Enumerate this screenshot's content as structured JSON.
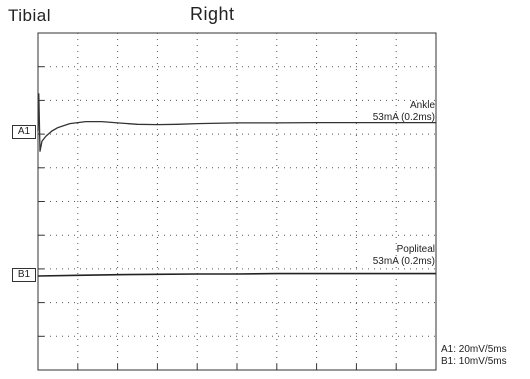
{
  "header": {
    "nerve": "Tibial",
    "side": "Right"
  },
  "channels": [
    {
      "tag": "A1",
      "site": "Ankle",
      "stim": "53mA (0.2ms)"
    },
    {
      "tag": "B1",
      "site": "Popliteal",
      "stim": "53mA (0.2ms)"
    }
  ],
  "scales": {
    "a1": "A1: 20mV/5ms",
    "b1": "B1: 10mV/5ms"
  },
  "chart_data": {
    "type": "line",
    "title": "",
    "xlabel": "",
    "ylabel": "",
    "grid": true,
    "grid_divisions": {
      "x": 10,
      "y": 10
    },
    "series": [
      {
        "name": "A1",
        "x_div": [
          0,
          0.02,
          0.05,
          0.1,
          0.2,
          0.35,
          0.5,
          0.8,
          1.2,
          1.6,
          2.0,
          2.5,
          3.0,
          3.5,
          4.0,
          5.0,
          6.0,
          7.0,
          8.0,
          9.0,
          10.0
        ],
        "y_div": [
          0,
          1.1,
          -0.6,
          -0.3,
          -0.15,
          0.0,
          0.1,
          0.22,
          0.28,
          0.28,
          0.24,
          0.2,
          0.19,
          0.2,
          0.22,
          0.24,
          0.24,
          0.25,
          0.25,
          0.25,
          0.25
        ]
      },
      {
        "name": "B1",
        "x_div": [
          0,
          1,
          2,
          3,
          4,
          5,
          6,
          7,
          8,
          9,
          10
        ],
        "y_div": [
          0,
          0.02,
          0.04,
          0.05,
          0.06,
          0.06,
          0.07,
          0.07,
          0.07,
          0.07,
          0.07
        ]
      }
    ]
  }
}
